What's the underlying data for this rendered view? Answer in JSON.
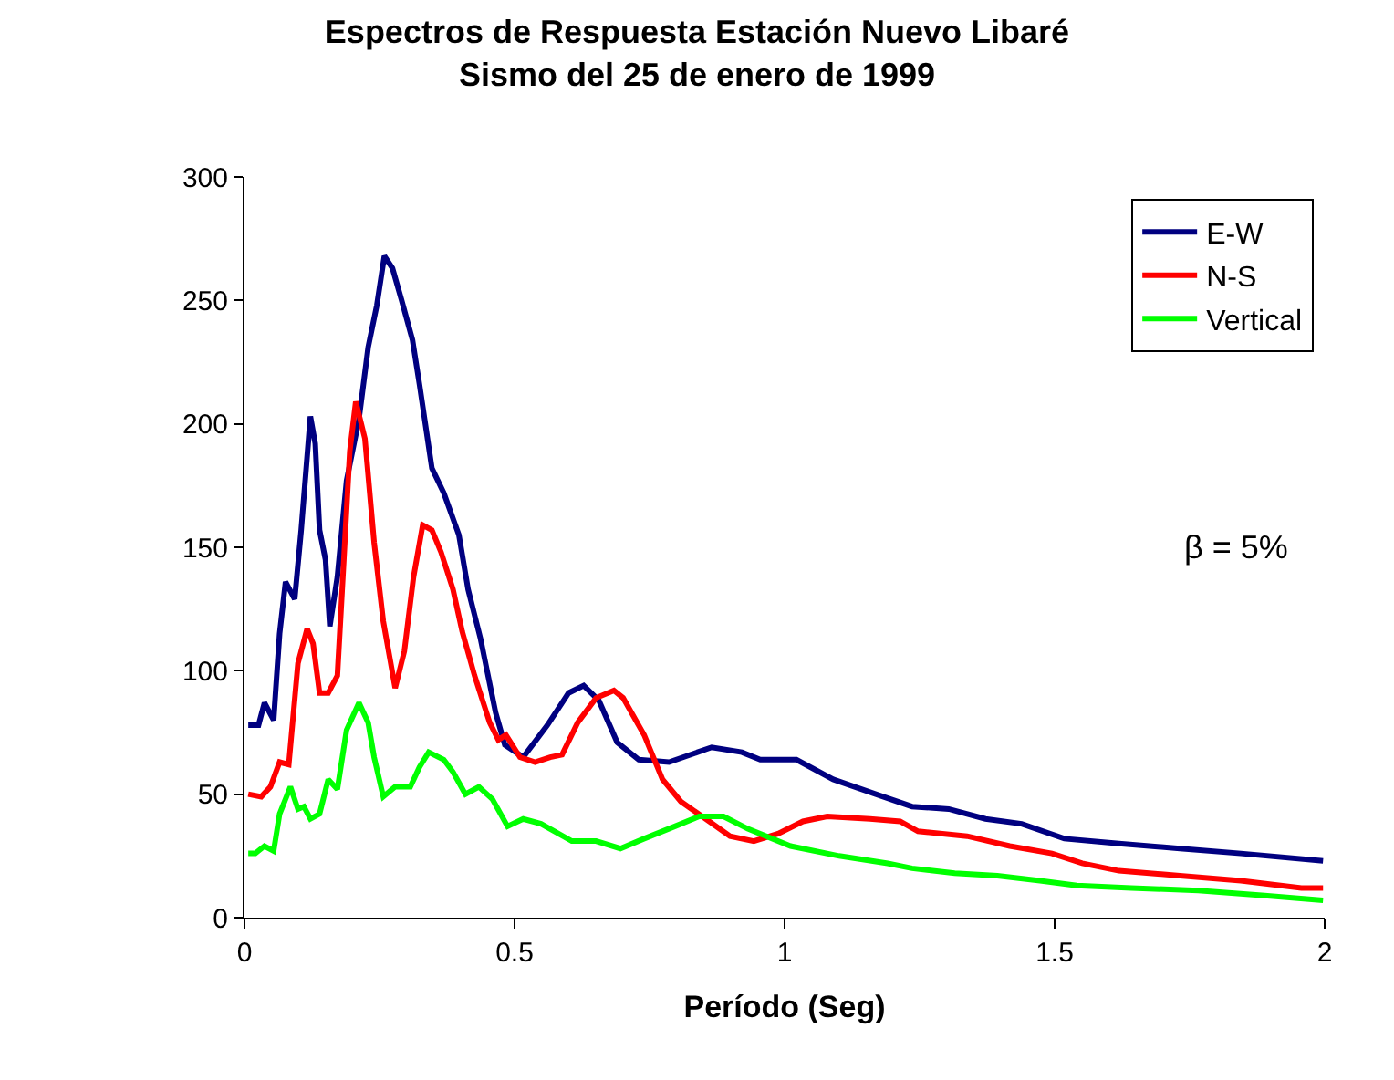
{
  "chart_data": {
    "type": "line",
    "title": "Espectros de Respuesta Estación Nuevo Libaré",
    "subtitle": "Sismo del 25 de enero de 1999",
    "xlabel": "Período (Seg)",
    "xlim": [
      0,
      2
    ],
    "xticks": [
      0,
      0.5,
      1,
      1.5,
      2
    ],
    "ylim": [
      0,
      300
    ],
    "yticks": [
      0,
      50,
      100,
      150,
      200,
      250,
      300
    ],
    "legend": "top right",
    "marker": "none",
    "line_style": "solid",
    "annotations": [
      "β = 5%"
    ],
    "series": [
      {
        "name": "E-W",
        "color": "#000080",
        "x": [
          0.007,
          0.026,
          0.037,
          0.054,
          0.065,
          0.076,
          0.093,
          0.105,
          0.122,
          0.131,
          0.139,
          0.15,
          0.158,
          0.172,
          0.189,
          0.212,
          0.229,
          0.245,
          0.259,
          0.274,
          0.291,
          0.311,
          0.324,
          0.347,
          0.369,
          0.397,
          0.414,
          0.437,
          0.465,
          0.482,
          0.516,
          0.561,
          0.6,
          0.628,
          0.656,
          0.69,
          0.73,
          0.786,
          0.865,
          0.921,
          0.955,
          1.022,
          1.09,
          1.169,
          1.236,
          1.304,
          1.372,
          1.439,
          1.518,
          1.619,
          1.732,
          1.845,
          1.997
        ],
        "values": [
          78,
          78,
          87,
          80,
          115,
          136,
          129,
          157,
          203,
          192,
          157,
          145,
          118,
          138,
          177,
          202,
          231,
          248,
          268,
          263,
          250,
          234,
          216,
          182,
          172,
          155,
          133,
          113,
          83,
          70,
          65,
          78,
          91,
          94,
          88,
          71,
          64,
          63,
          69,
          67,
          64,
          64,
          56,
          50,
          45,
          44,
          40,
          38,
          32,
          30,
          28,
          26,
          23
        ]
      },
      {
        "name": "N-S",
        "color": "#ff0000",
        "x": [
          0.007,
          0.031,
          0.048,
          0.065,
          0.082,
          0.099,
          0.116,
          0.127,
          0.139,
          0.155,
          0.172,
          0.184,
          0.195,
          0.206,
          0.223,
          0.24,
          0.257,
          0.279,
          0.296,
          0.313,
          0.33,
          0.347,
          0.364,
          0.386,
          0.403,
          0.426,
          0.454,
          0.47,
          0.484,
          0.51,
          0.538,
          0.566,
          0.588,
          0.617,
          0.651,
          0.684,
          0.701,
          0.74,
          0.774,
          0.808,
          0.854,
          0.899,
          0.943,
          0.988,
          1.034,
          1.079,
          1.158,
          1.214,
          1.247,
          1.338,
          1.417,
          1.495,
          1.551,
          1.619,
          1.732,
          1.845,
          1.957,
          1.997
        ],
        "values": [
          50,
          49,
          53,
          63,
          62,
          103,
          117,
          111,
          91,
          91,
          98,
          145,
          189,
          209,
          194,
          152,
          120,
          93,
          108,
          138,
          159,
          157,
          148,
          133,
          116,
          98,
          79,
          72,
          74,
          65,
          63,
          65,
          66,
          79,
          89,
          92,
          89,
          74,
          56,
          47,
          40,
          33,
          31,
          34,
          39,
          41,
          40,
          39,
          35,
          33,
          29,
          26,
          22,
          19,
          17,
          15,
          12,
          12
        ]
      },
      {
        "name": "Vertical",
        "color": "#00ff00",
        "x": [
          0.007,
          0.02,
          0.037,
          0.054,
          0.065,
          0.085,
          0.099,
          0.11,
          0.122,
          0.139,
          0.155,
          0.172,
          0.189,
          0.212,
          0.229,
          0.24,
          0.257,
          0.279,
          0.307,
          0.324,
          0.341,
          0.369,
          0.386,
          0.409,
          0.434,
          0.459,
          0.487,
          0.516,
          0.549,
          0.606,
          0.651,
          0.696,
          0.74,
          0.797,
          0.842,
          0.887,
          0.932,
          1.011,
          1.101,
          1.191,
          1.236,
          1.315,
          1.394,
          1.473,
          1.541,
          1.642,
          1.766,
          1.889,
          1.997
        ],
        "values": [
          26,
          26,
          29,
          27,
          42,
          53,
          44,
          45,
          40,
          42,
          56,
          52,
          76,
          87,
          79,
          65,
          49,
          53,
          53,
          61,
          67,
          64,
          59,
          50,
          53,
          48,
          37,
          40,
          38,
          31,
          31,
          28,
          32,
          37,
          41,
          41,
          36,
          29,
          25,
          22,
          20,
          18,
          17,
          15,
          13,
          12,
          11,
          9,
          7
        ]
      }
    ]
  }
}
